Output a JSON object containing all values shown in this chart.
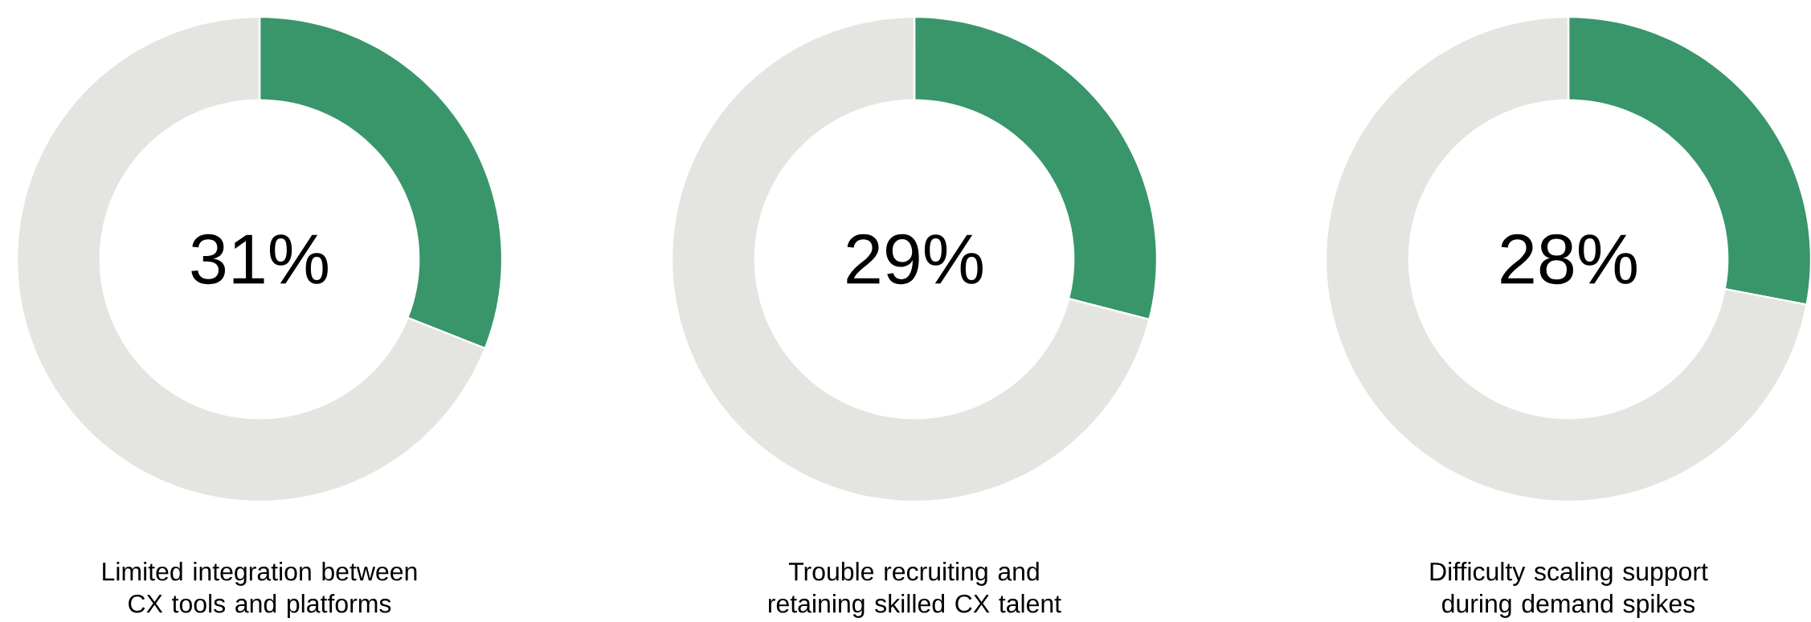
{
  "chart_data": [
    {
      "type": "donut",
      "title": "Limited integration between CX tools and platforms",
      "categories": [
        null,
        null
      ],
      "values": [
        31,
        69
      ],
      "colors": [
        "#38966a",
        "#e4e5e0"
      ],
      "value_labels": [
        "31%",
        null
      ]
    },
    {
      "type": "donut",
      "title": "Trouble recruiting and retaining skilled CX talent",
      "categories": [
        null,
        null
      ],
      "values": [
        29,
        71
      ],
      "colors": [
        "#38966a",
        "#e4e5e0"
      ],
      "value_labels": [
        "29%",
        null
      ]
    },
    {
      "type": "donut",
      "title": "Difficulty scaling support during demand spikes",
      "categories": [
        null,
        null
      ],
      "values": [
        28,
        72
      ],
      "colors": [
        "#38966a",
        "#e4e5e0"
      ],
      "value_labels": [
        "28%",
        null
      ]
    }
  ]
}
